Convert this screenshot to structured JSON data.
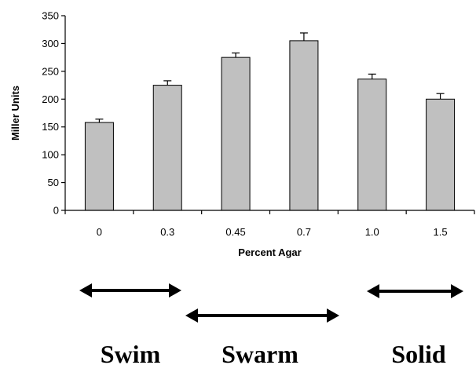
{
  "chart_data": {
    "type": "bar",
    "categories": [
      "0",
      "0.3",
      "0.45",
      "0.7",
      "1.0",
      "1.5"
    ],
    "values": [
      158,
      225,
      275,
      305,
      236,
      200
    ],
    "errors": [
      6,
      8,
      8,
      14,
      9,
      10
    ],
    "xlabel": "Percent Agar",
    "ylabel": "Miller Units",
    "ylim": [
      0,
      350
    ],
    "yticks": [
      0,
      50,
      100,
      150,
      200,
      250,
      300,
      350
    ],
    "grid": false,
    "bar_color": "#c0c0c0"
  },
  "regions": [
    {
      "label": "Swim"
    },
    {
      "label": "Swarm"
    },
    {
      "label": "Solid"
    }
  ]
}
